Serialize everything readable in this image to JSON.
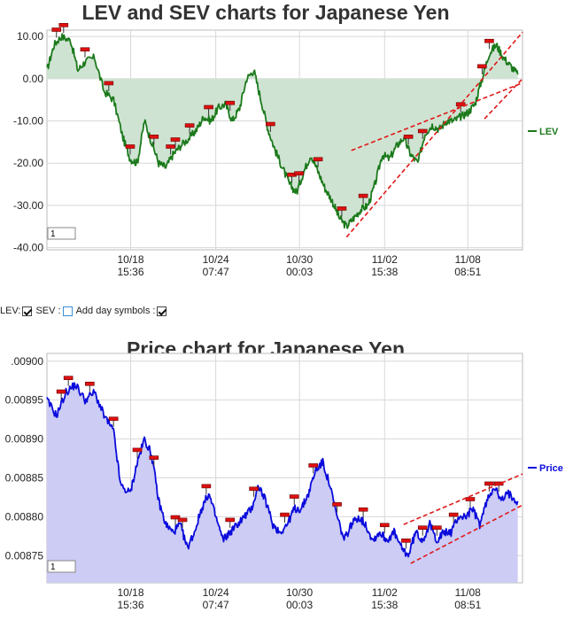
{
  "chart_data": [
    {
      "type": "area",
      "title": "LEV and SEV charts for Japanese Yen",
      "y_ticks": [
        "10.00",
        "0.00",
        "-10.00",
        "-20.00",
        "-30.00",
        "-40.00"
      ],
      "ylim": [
        -40.5,
        11.5
      ],
      "x_ticks": [
        {
          "date": "10/18",
          "time": "15:36"
        },
        {
          "date": "10/24",
          "time": "07:47"
        },
        {
          "date": "10/30",
          "time": "00:03"
        },
        {
          "date": "11/02",
          "time": "15:38"
        },
        {
          "date": "11/08",
          "time": "08:51"
        }
      ],
      "grid": true,
      "legend_placement": "right",
      "input_value": "1",
      "series": [
        {
          "name": "LEV",
          "color": "#1b7a1b",
          "fill": "#cfe3d2",
          "points": [
            [
              0,
              2
            ],
            [
              1.5,
              8
            ],
            [
              3,
              10
            ],
            [
              5,
              9
            ],
            [
              6.5,
              2
            ],
            [
              8,
              4
            ],
            [
              10,
              5
            ],
            [
              12,
              -3
            ],
            [
              14,
              -5
            ],
            [
              16,
              -14
            ],
            [
              17.5,
              -19
            ],
            [
              19,
              -20
            ],
            [
              20.5,
              -10
            ],
            [
              22,
              -15
            ],
            [
              23.5,
              -20
            ],
            [
              25,
              -21
            ],
            [
              26.5,
              -18
            ],
            [
              28,
              -16
            ],
            [
              30,
              -14
            ],
            [
              31.5,
              -12
            ],
            [
              33,
              -9
            ],
            [
              34.5,
              -10
            ],
            [
              36,
              -7
            ],
            [
              37.5,
              -6
            ],
            [
              39,
              -10
            ],
            [
              40.5,
              -7
            ],
            [
              42,
              0
            ],
            [
              43.5,
              2
            ],
            [
              45,
              -5
            ],
            [
              46.5,
              -12
            ],
            [
              48,
              -17
            ],
            [
              49.5,
              -21
            ],
            [
              51,
              -25
            ],
            [
              52.5,
              -27
            ],
            [
              54,
              -22
            ],
            [
              55.5,
              -18
            ],
            [
              57,
              -22
            ],
            [
              58.5,
              -26
            ],
            [
              60,
              -29
            ],
            [
              61.5,
              -33
            ],
            [
              63,
              -35
            ],
            [
              64.5,
              -33
            ],
            [
              66,
              -31
            ],
            [
              67.5,
              -30
            ],
            [
              69,
              -25
            ],
            [
              70.5,
              -18
            ],
            [
              72,
              -19
            ],
            [
              73.5,
              -16
            ],
            [
              75,
              -14
            ],
            [
              76.5,
              -18
            ],
            [
              78,
              -20
            ],
            [
              79.5,
              -13
            ],
            [
              81,
              -11
            ],
            [
              82.5,
              -12
            ],
            [
              84,
              -10
            ],
            [
              85.5,
              -10
            ],
            [
              87,
              -9
            ],
            [
              88.5,
              -8
            ],
            [
              90,
              -6
            ],
            [
              91.5,
              0
            ],
            [
              93,
              6
            ],
            [
              94.5,
              8
            ],
            [
              96,
              5
            ],
            [
              97.5,
              3
            ],
            [
              99,
              1
            ]
          ]
        }
      ],
      "markers_at": [
        2,
        3.5,
        8,
        13,
        17.5,
        22.5,
        26,
        27,
        30,
        34,
        38.5,
        47,
        51.5,
        53,
        57,
        62,
        66.5,
        76,
        79,
        87,
        91.5,
        93
      ],
      "trend_lines": [
        {
          "from": [
            63,
            -37.5
          ],
          "to": [
            100,
            11
          ]
        },
        {
          "from": [
            64,
            -17
          ],
          "to": [
            100,
            -1
          ]
        },
        {
          "from": [
            92,
            -9.5
          ],
          "to": [
            100,
            0
          ]
        }
      ]
    },
    {
      "type": "area",
      "title": "Price chart for Japanese Yen",
      "y_ticks": [
        ".00900",
        "0.00895",
        "0.00890",
        "0.00885",
        "0.00880",
        "0.00875"
      ],
      "ylim": [
        0.008715,
        0.00901
      ],
      "x_ticks": [
        {
          "date": "10/18",
          "time": "15:36"
        },
        {
          "date": "10/24",
          "time": "07:47"
        },
        {
          "date": "10/30",
          "time": "00:03"
        },
        {
          "date": "11/02",
          "time": "15:38"
        },
        {
          "date": "11/08",
          "time": "08:51"
        }
      ],
      "grid": true,
      "legend_placement": "right",
      "input_value": "1",
      "series": [
        {
          "name": "Price",
          "color": "#0a0adc",
          "fill": "#ccccf5",
          "points": [
            [
              0,
              0.00895
            ],
            [
              2,
              0.00893
            ],
            [
              4,
              0.00896
            ],
            [
              6,
              0.00897
            ],
            [
              8,
              0.00895
            ],
            [
              10,
              0.00896
            ],
            [
              12,
              0.00893
            ],
            [
              14,
              0.00891
            ],
            [
              15.5,
              0.00884
            ],
            [
              17.5,
              0.00883
            ],
            [
              19,
              0.00887
            ],
            [
              20.5,
              0.0089
            ],
            [
              22,
              0.00888
            ],
            [
              23.5,
              0.00882
            ],
            [
              25,
              0.00879
            ],
            [
              26.5,
              0.00878
            ],
            [
              28,
              0.00879
            ],
            [
              29.5,
              0.00876
            ],
            [
              31,
              0.00878
            ],
            [
              32.5,
              0.00881
            ],
            [
              34,
              0.00883
            ],
            [
              35.5,
              0.0088
            ],
            [
              37,
              0.00877
            ],
            [
              38.5,
              0.00878
            ],
            [
              40,
              0.00879
            ],
            [
              41.5,
              0.0088
            ],
            [
              43,
              0.00881
            ],
            [
              44.5,
              0.00884
            ],
            [
              46,
              0.00882
            ],
            [
              47.5,
              0.00879
            ],
            [
              49,
              0.00878
            ],
            [
              50.5,
              0.00879
            ],
            [
              52,
              0.00881
            ],
            [
              53.5,
              0.00881
            ],
            [
              55,
              0.00883
            ],
            [
              56.5,
              0.00886
            ],
            [
              58,
              0.00887
            ],
            [
              59.5,
              0.00884
            ],
            [
              61,
              0.0088
            ],
            [
              62.5,
              0.00877
            ],
            [
              64,
              0.00879
            ],
            [
              65.5,
              0.0088
            ],
            [
              67,
              0.00879
            ],
            [
              68.5,
              0.00877
            ],
            [
              70,
              0.00878
            ],
            [
              71.5,
              0.00877
            ],
            [
              73,
              0.00878
            ],
            [
              74.5,
              0.00876
            ],
            [
              76,
              0.00875
            ],
            [
              77.5,
              0.00878
            ],
            [
              79,
              0.00877
            ],
            [
              80.5,
              0.00879
            ],
            [
              82,
              0.00877
            ],
            [
              83.5,
              0.00878
            ],
            [
              85,
              0.00878
            ],
            [
              86.5,
              0.0088
            ],
            [
              88,
              0.0088
            ],
            [
              89.5,
              0.00881
            ],
            [
              91,
              0.00879
            ],
            [
              92.5,
              0.00882
            ],
            [
              94,
              0.00884
            ],
            [
              95.5,
              0.00882
            ],
            [
              97,
              0.00883
            ],
            [
              99,
              0.00882
            ]
          ]
        }
      ],
      "markers_at": [
        3,
        4.5,
        9,
        14,
        19,
        22.5,
        27,
        28.5,
        33.5,
        38.5,
        43.5,
        50,
        52,
        56,
        61,
        66.5,
        71,
        75.5,
        79,
        82,
        85.5,
        89,
        93,
        95
      ],
      "trend_lines": [
        {
          "from": [
            76.5,
            0.00874
          ],
          "to": [
            100,
            0.008815
          ]
        },
        {
          "from": [
            75,
            0.00879
          ],
          "to": [
            100,
            0.008855
          ]
        }
      ]
    }
  ],
  "controls": {
    "lev_label": "LEV:",
    "sev_label": "SEV :",
    "add_day_symbols_label": "Add day symbols :"
  }
}
